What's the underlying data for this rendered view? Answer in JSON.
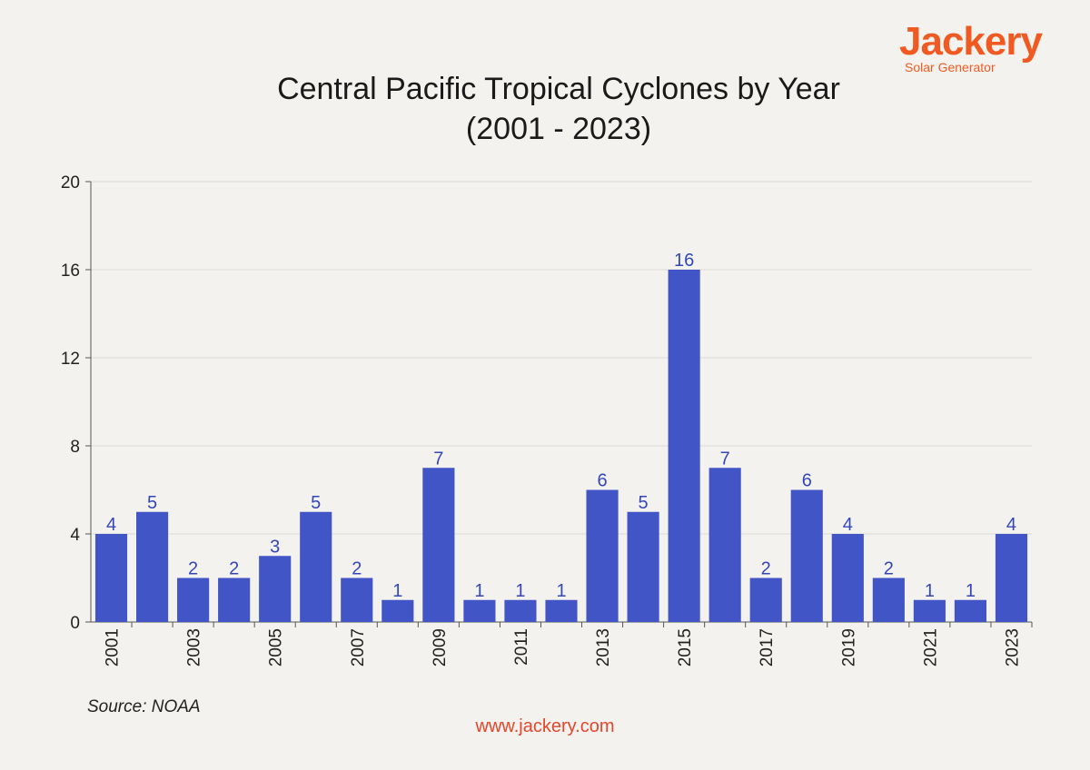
{
  "brand": {
    "name": "Jackery",
    "tagline": "Solar Generator",
    "color": "#f05a22"
  },
  "footer": {
    "source": "Source: NOAA",
    "website": "www.jackery.com"
  },
  "chart_data": {
    "type": "bar",
    "title": "Central Pacific Tropical Cyclones by Year",
    "subtitle": "(2001 - 2023)",
    "xlabel": "",
    "ylabel": "",
    "categories": [
      "2001",
      "2002",
      "2003",
      "2004",
      "2005",
      "2006",
      "2007",
      "2008",
      "2009",
      "2010",
      "2011",
      "2012",
      "2013",
      "2014",
      "2015",
      "2016",
      "2017",
      "2018",
      "2019",
      "2020",
      "2021",
      "2022",
      "2023"
    ],
    "x_tick_labels": [
      "2001",
      "",
      "2003",
      "",
      "2005",
      "",
      "2007",
      "",
      "2009",
      "",
      "2011",
      "",
      "2013",
      "",
      "2015",
      "",
      "2017",
      "",
      "2019",
      "",
      "2021",
      "",
      "2023"
    ],
    "values": [
      4,
      5,
      2,
      2,
      3,
      5,
      2,
      1,
      7,
      1,
      1,
      1,
      6,
      5,
      16,
      7,
      2,
      6,
      4,
      2,
      1,
      1,
      4
    ],
    "ylim": [
      0,
      20
    ],
    "yticks": [
      0,
      4,
      8,
      12,
      16,
      20
    ],
    "grid": true,
    "bar_color": "#4255c6",
    "label_color": "#3447b8"
  }
}
